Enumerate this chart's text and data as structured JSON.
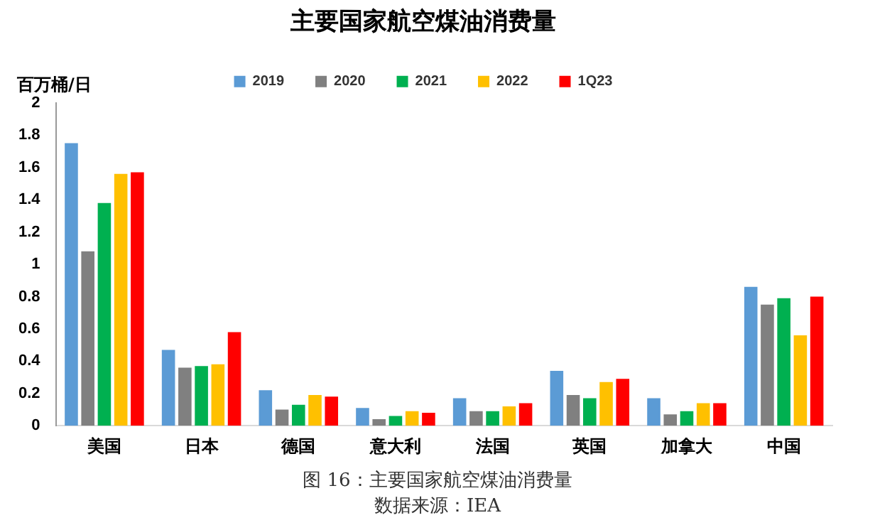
{
  "chart_data": {
    "type": "bar",
    "title": "主要国家航空煤油消费量",
    "ylabel": "百万桶/日",
    "categories": [
      "美国",
      "日本",
      "德国",
      "意大利",
      "法国",
      "英国",
      "加拿大",
      "中国"
    ],
    "series": [
      {
        "name": "2019",
        "color": "#5b9bd5",
        "values": [
          1.75,
          0.47,
          0.22,
          0.11,
          0.17,
          0.34,
          0.17,
          0.86
        ]
      },
      {
        "name": "2020",
        "color": "#808080",
        "values": [
          1.08,
          0.36,
          0.1,
          0.04,
          0.09,
          0.19,
          0.07,
          0.75
        ]
      },
      {
        "name": "2021",
        "color": "#00b050",
        "values": [
          1.38,
          0.37,
          0.13,
          0.06,
          0.09,
          0.17,
          0.09,
          0.79
        ]
      },
      {
        "name": "2022",
        "color": "#ffc000",
        "values": [
          1.56,
          0.38,
          0.19,
          0.09,
          0.12,
          0.27,
          0.14,
          0.56
        ]
      },
      {
        "name": "1Q23",
        "color": "#ff0000",
        "values": [
          1.57,
          0.58,
          0.18,
          0.08,
          0.14,
          0.29,
          0.14,
          0.8
        ]
      }
    ],
    "ylim": [
      0,
      2
    ],
    "yticks": [
      0,
      0.2,
      0.4,
      0.6,
      0.8,
      1,
      1.2,
      1.4,
      1.6,
      1.8,
      2
    ],
    "grid": false,
    "legend": "top",
    "annotations": [
      "图 16：主要国家航空煤油消费量",
      "数据来源：IEA"
    ]
  }
}
